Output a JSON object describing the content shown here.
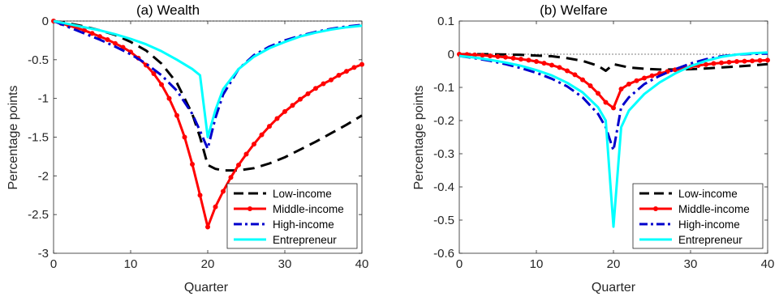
{
  "chart_data": [
    {
      "type": "line",
      "title": "(a) Wealth",
      "xlabel": "Quarter",
      "ylabel": "Percentage points",
      "xlim": [
        0,
        40
      ],
      "ylim": [
        -3,
        0
      ],
      "xticks": [
        0,
        10,
        20,
        30,
        40
      ],
      "yticks": [
        0,
        -0.5,
        -1,
        -1.5,
        -2,
        -2.5,
        -3
      ],
      "ytick_labels": [
        "0",
        "-0.5",
        "-1",
        "-1.5",
        "-2",
        "-2.5",
        "-3"
      ],
      "zero_line": true,
      "legend_position": "bottom-right",
      "series": [
        {
          "name": "Low-income",
          "color": "#000000",
          "style": "dashed",
          "x": [
            0,
            2,
            4,
            6,
            8,
            10,
            12,
            14,
            16,
            18,
            19,
            20,
            21,
            22,
            24,
            26,
            28,
            30,
            32,
            34,
            36,
            38,
            40
          ],
          "y": [
            0,
            -0.03,
            -0.07,
            -0.12,
            -0.18,
            -0.27,
            -0.38,
            -0.55,
            -0.8,
            -1.2,
            -1.5,
            -1.86,
            -1.91,
            -1.93,
            -1.93,
            -1.9,
            -1.84,
            -1.76,
            -1.66,
            -1.56,
            -1.45,
            -1.34,
            -1.22
          ]
        },
        {
          "name": "Middle-income",
          "color": "#ff0000",
          "style": "solid-marker",
          "x": [
            0,
            1,
            2,
            3,
            4,
            5,
            6,
            7,
            8,
            9,
            10,
            11,
            12,
            13,
            14,
            15,
            16,
            17,
            18,
            19,
            20,
            21,
            22,
            23,
            24,
            25,
            26,
            27,
            28,
            29,
            30,
            31,
            32,
            33,
            34,
            35,
            36,
            37,
            38,
            39,
            40
          ],
          "y": [
            0,
            -0.03,
            -0.06,
            -0.09,
            -0.12,
            -0.16,
            -0.2,
            -0.24,
            -0.29,
            -0.34,
            -0.4,
            -0.48,
            -0.57,
            -0.68,
            -0.82,
            -1.0,
            -1.22,
            -1.5,
            -1.85,
            -2.25,
            -2.66,
            -2.4,
            -2.2,
            -2.02,
            -1.86,
            -1.72,
            -1.59,
            -1.47,
            -1.36,
            -1.26,
            -1.17,
            -1.09,
            -1.01,
            -0.94,
            -0.87,
            -0.81,
            -0.76,
            -0.7,
            -0.65,
            -0.6,
            -0.56
          ]
        },
        {
          "name": "High-income",
          "color": "#0000cc",
          "style": "dashdot",
          "x": [
            0,
            2,
            4,
            6,
            8,
            10,
            12,
            14,
            16,
            18,
            19,
            20,
            21,
            22,
            24,
            26,
            28,
            30,
            32,
            34,
            36,
            38,
            40
          ],
          "y": [
            0,
            -0.08,
            -0.16,
            -0.24,
            -0.33,
            -0.43,
            -0.55,
            -0.7,
            -0.9,
            -1.2,
            -1.42,
            -1.65,
            -1.25,
            -0.95,
            -0.62,
            -0.44,
            -0.33,
            -0.25,
            -0.19,
            -0.14,
            -0.1,
            -0.07,
            -0.05
          ]
        },
        {
          "name": "Entrepreneur",
          "color": "#00ffff",
          "style": "solid",
          "x": [
            0,
            2,
            4,
            6,
            8,
            10,
            12,
            14,
            16,
            18,
            19,
            20,
            21,
            22,
            24,
            26,
            28,
            30,
            32,
            34,
            36,
            38,
            40
          ],
          "y": [
            0,
            -0.04,
            -0.08,
            -0.12,
            -0.17,
            -0.23,
            -0.3,
            -0.39,
            -0.5,
            -0.62,
            -0.7,
            -1.5,
            -1.15,
            -0.88,
            -0.62,
            -0.46,
            -0.35,
            -0.27,
            -0.2,
            -0.15,
            -0.11,
            -0.08,
            -0.06
          ]
        }
      ],
      "legend": [
        "Low-income",
        "Middle-income",
        "High-income",
        "Entrepreneur"
      ]
    },
    {
      "type": "line",
      "title": "(b) Welfare",
      "xlabel": "Quarter",
      "ylabel": "Percentage points",
      "xlim": [
        0,
        40
      ],
      "ylim": [
        -0.6,
        0.1
      ],
      "xticks": [
        0,
        10,
        20,
        30,
        40
      ],
      "yticks": [
        0.1,
        0,
        -0.1,
        -0.2,
        -0.3,
        -0.4,
        -0.5,
        -0.6
      ],
      "ytick_labels": [
        "0.1",
        "0",
        "-0.1",
        "-0.2",
        "-0.3",
        "-0.4",
        "-0.5",
        "-0.6"
      ],
      "zero_line": true,
      "legend_position": "bottom-right",
      "series": [
        {
          "name": "Low-income",
          "color": "#000000",
          "style": "dashed",
          "x": [
            0,
            4,
            8,
            12,
            14,
            16,
            18,
            19,
            20,
            21,
            22,
            24,
            26,
            28,
            30,
            32,
            34,
            36,
            38,
            40
          ],
          "y": [
            0,
            0,
            -0.002,
            -0.006,
            -0.012,
            -0.02,
            -0.035,
            -0.05,
            -0.03,
            -0.035,
            -0.04,
            -0.044,
            -0.046,
            -0.046,
            -0.045,
            -0.043,
            -0.04,
            -0.037,
            -0.034,
            -0.03
          ]
        },
        {
          "name": "Middle-income",
          "color": "#ff0000",
          "style": "solid-marker",
          "x": [
            0,
            1,
            2,
            3,
            4,
            5,
            6,
            7,
            8,
            9,
            10,
            11,
            12,
            13,
            14,
            15,
            16,
            17,
            18,
            19,
            20,
            21,
            22,
            23,
            24,
            25,
            26,
            27,
            28,
            29,
            30,
            31,
            32,
            33,
            34,
            35,
            36,
            37,
            38,
            39,
            40
          ],
          "y": [
            0,
            -0.001,
            -0.002,
            -0.003,
            -0.005,
            -0.007,
            -0.009,
            -0.012,
            -0.015,
            -0.018,
            -0.022,
            -0.027,
            -0.033,
            -0.04,
            -0.05,
            -0.062,
            -0.077,
            -0.095,
            -0.118,
            -0.145,
            -0.162,
            -0.105,
            -0.09,
            -0.08,
            -0.072,
            -0.065,
            -0.058,
            -0.052,
            -0.047,
            -0.042,
            -0.038,
            -0.034,
            -0.031,
            -0.028,
            -0.026,
            -0.024,
            -0.022,
            -0.021,
            -0.02,
            -0.019,
            -0.018
          ]
        },
        {
          "name": "High-income",
          "color": "#0000cc",
          "style": "dashdot",
          "x": [
            0,
            2,
            4,
            6,
            8,
            10,
            12,
            14,
            16,
            18,
            19,
            20,
            21,
            22,
            24,
            26,
            28,
            30,
            32,
            34,
            36,
            38,
            40
          ],
          "y": [
            -0.005,
            -0.012,
            -0.02,
            -0.03,
            -0.042,
            -0.056,
            -0.074,
            -0.097,
            -0.13,
            -0.18,
            -0.22,
            -0.29,
            -0.16,
            -0.13,
            -0.09,
            -0.065,
            -0.045,
            -0.028,
            -0.015,
            -0.006,
            -0.001,
            0.001,
            0.002
          ]
        },
        {
          "name": "Entrepreneur",
          "color": "#00ffff",
          "style": "solid",
          "x": [
            0,
            2,
            4,
            6,
            8,
            10,
            12,
            14,
            16,
            18,
            19,
            20,
            21,
            22,
            24,
            26,
            28,
            30,
            32,
            34,
            36,
            38,
            40
          ],
          "y": [
            -0.005,
            -0.01,
            -0.017,
            -0.025,
            -0.035,
            -0.048,
            -0.064,
            -0.086,
            -0.115,
            -0.16,
            -0.2,
            -0.52,
            -0.22,
            -0.17,
            -0.12,
            -0.085,
            -0.058,
            -0.036,
            -0.02,
            -0.008,
            -0.001,
            0.003,
            0.005
          ]
        }
      ],
      "legend": [
        "Low-income",
        "Middle-income",
        "High-income",
        "Entrepreneur"
      ]
    }
  ]
}
